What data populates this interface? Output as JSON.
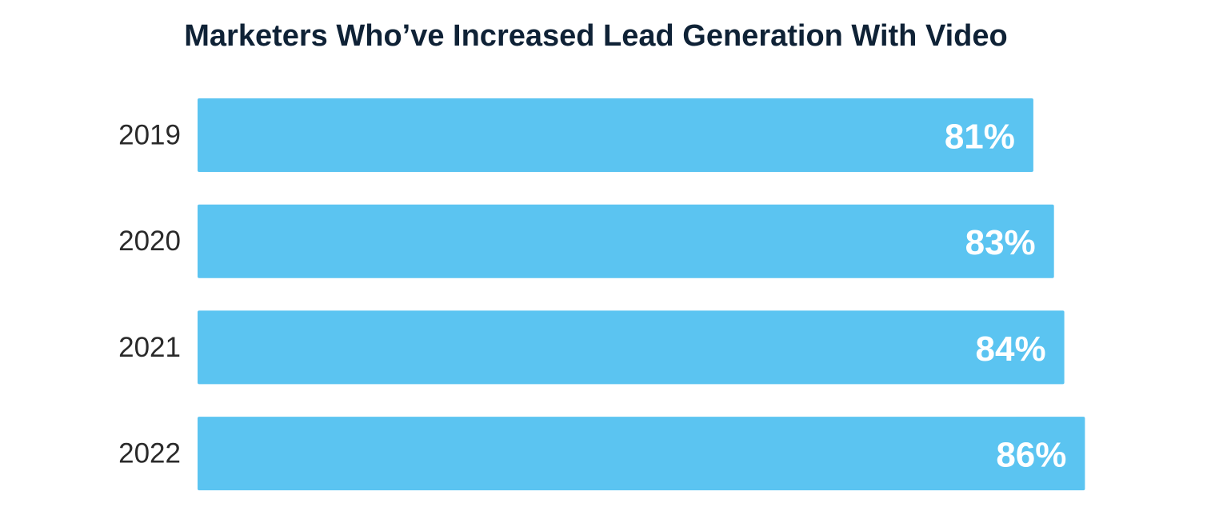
{
  "chart_data": {
    "type": "bar",
    "orientation": "horizontal",
    "title": "Marketers Who’ve Increased Lead Generation With Video",
    "categories": [
      "2019",
      "2020",
      "2021",
      "2022"
    ],
    "values": [
      81,
      83,
      84,
      86
    ],
    "value_labels": [
      "81%",
      "83%",
      "84%",
      "86%"
    ],
    "xlabel": "",
    "ylabel": "",
    "xlim": [
      0,
      100
    ],
    "grid": false,
    "legend": "none",
    "bar_color": "#5bc4f1",
    "value_label_color": "#ffffff",
    "title_color": "#0f2236"
  }
}
